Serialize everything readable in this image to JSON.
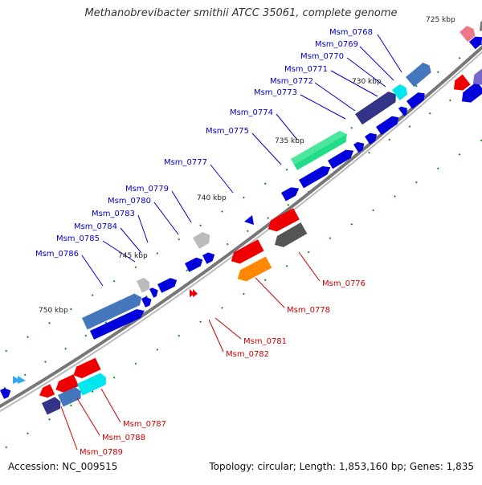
{
  "title": "Methanobrevibacter smithii ATCC 35061, complete genome",
  "footer": {
    "accession": "Accession: NC_009515",
    "summary": "Topology: circular; Length: 1,853,160 bp; Genes: 1,835"
  },
  "colors": {
    "forward": "#0000dd",
    "red": "#ee0000",
    "label_blue": "#0000cc",
    "label_red": "#cc0000",
    "backbone": "#777777",
    "tick": "#1a8a1a"
  },
  "scale_labels": [
    {
      "text": "725 kbp",
      "kbp": 725
    },
    {
      "text": "730 kbp",
      "kbp": 730
    },
    {
      "text": "735 kbp",
      "kbp": 735
    },
    {
      "text": "740 kbp",
      "kbp": 740
    },
    {
      "text": "745 kbp",
      "kbp": 745
    },
    {
      "text": "750 kbp",
      "kbp": 750
    }
  ],
  "gene_labels_top": [
    "Msm_0768",
    "Msm_0769",
    "Msm_0770",
    "Msm_0771",
    "Msm_0772",
    "Msm_0773",
    "Msm_0774",
    "Msm_0775",
    "Msm_0777",
    "Msm_0779",
    "Msm_0780",
    "Msm_0783",
    "Msm_0784",
    "Msm_0785",
    "Msm_0786"
  ],
  "gene_labels_bottom": [
    "Msm_0776",
    "Msm_0778",
    "Msm_0781",
    "Msm_0782",
    "Msm_0787",
    "Msm_0788",
    "Msm_0789"
  ]
}
